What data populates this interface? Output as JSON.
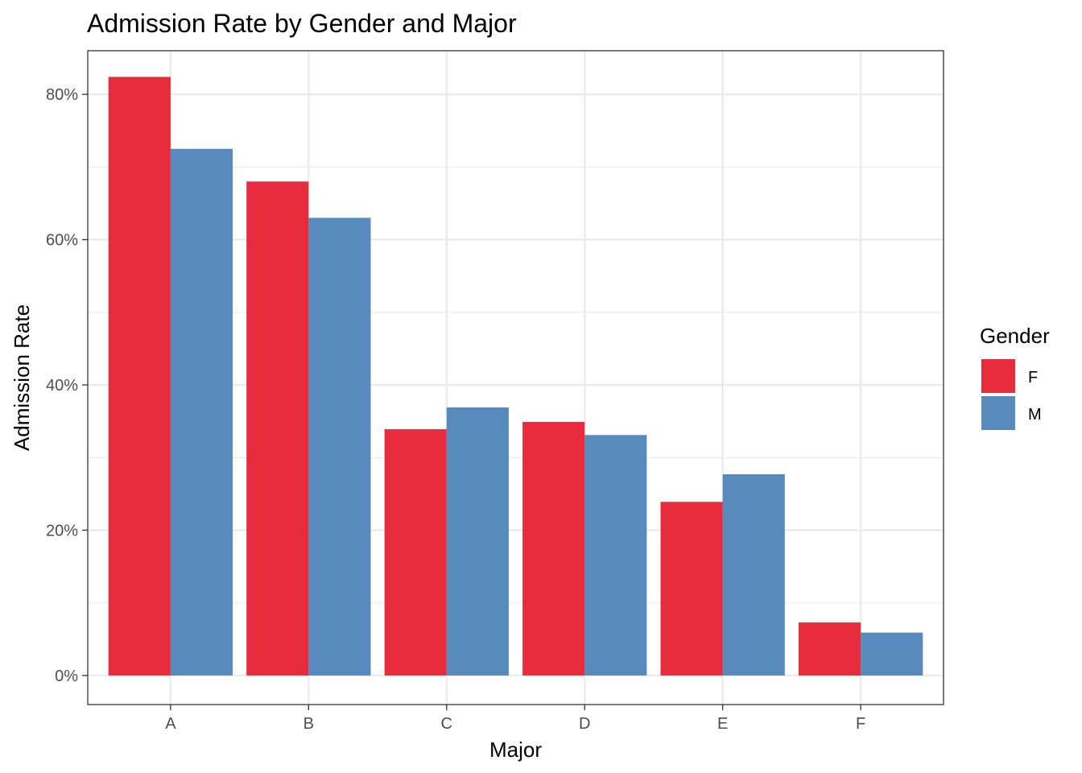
{
  "chart_data": {
    "type": "bar",
    "title": "Admission Rate by Gender and Major",
    "xlabel": "Major",
    "ylabel": "Admission Rate",
    "categories": [
      "A",
      "B",
      "C",
      "D",
      "E",
      "F"
    ],
    "series": [
      {
        "name": "F",
        "color": "#e41a2c",
        "values": [
          0.824,
          0.68,
          0.339,
          0.349,
          0.239,
          0.073
        ]
      },
      {
        "name": "M",
        "color": "#4a80b8",
        "values": [
          0.725,
          0.63,
          0.369,
          0.331,
          0.277,
          0.059
        ]
      }
    ],
    "ylim": [
      -0.04,
      0.86
    ],
    "yticks": [
      0,
      0.2,
      0.4,
      0.6,
      0.8
    ],
    "ytick_labels": [
      "0%",
      "20%",
      "40%",
      "60%",
      "80%"
    ],
    "grid": true,
    "legend": {
      "title": "Gender",
      "position": "right"
    }
  }
}
